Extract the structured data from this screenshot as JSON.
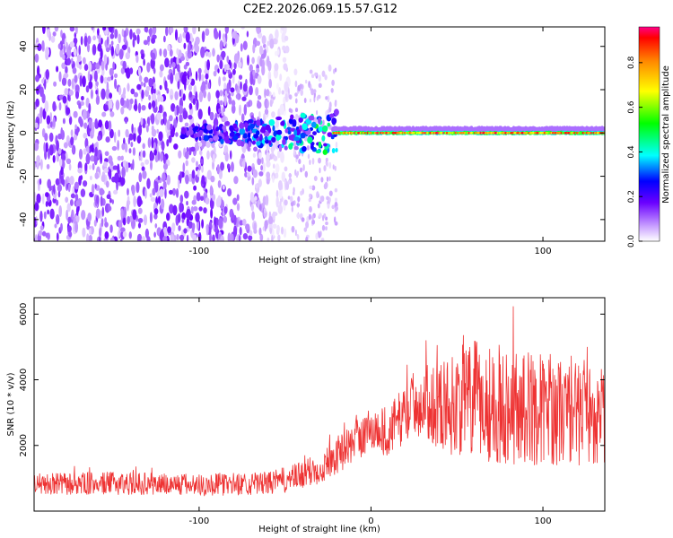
{
  "title": "C2E2.2026.069.15.57.G12",
  "chart_data": [
    {
      "type": "heatmap",
      "name": "spectrogram",
      "xlabel": "Height of straight line (km)",
      "ylabel": "Frequency (Hz)",
      "xlim": [
        -196,
        136
      ],
      "ylim": [
        -50,
        49
      ],
      "xticks": [
        -100,
        0,
        100
      ],
      "yticks": [
        -40,
        -20,
        0,
        20,
        40
      ],
      "colorbar": {
        "label": "Normalized spectral amplitude",
        "range": [
          0,
          0.96
        ],
        "ticks": [
          0.0,
          0.2,
          0.4,
          0.6,
          0.8
        ]
      },
      "features": [
        {
          "desc": "broadband noise",
          "x_range": [
            -196,
            -48
          ],
          "f_range": [
            -50,
            49
          ],
          "level": 0.1
        },
        {
          "desc": "faint scatter",
          "x_range": [
            -48,
            -20
          ],
          "f_range": [
            -50,
            30
          ],
          "level": 0.05
        },
        {
          "desc": "noisy ridge",
          "x_range": [
            -110,
            -20
          ],
          "f_center": 0,
          "level": 0.25
        },
        {
          "desc": "strong signal line",
          "x_range": [
            -22,
            136
          ],
          "f_center": 0,
          "level": 0.9
        }
      ]
    },
    {
      "type": "line",
      "name": "snr",
      "xlabel": "Height of straight line (km)",
      "ylabel": "SNR (10 * v/v)",
      "xlim": [
        -196,
        136
      ],
      "ylim": [
        0,
        6500
      ],
      "xticks": [
        -100,
        0,
        100
      ],
      "yticks": [
        2000,
        4000,
        6000
      ],
      "color": "#ee3333",
      "envelope": {
        "x": [
          -196,
          -150,
          -100,
          -60,
          -45,
          -30,
          -20,
          -10,
          0,
          10,
          20,
          25,
          35,
          45,
          55,
          65,
          80,
          100,
          115,
          136
        ],
        "y": [
          800,
          850,
          800,
          850,
          1000,
          1300,
          1700,
          2100,
          2500,
          2400,
          3000,
          3300,
          3300,
          3200,
          3400,
          3300,
          3200,
          3100,
          3000,
          2900
        ]
      },
      "spread": {
        "x": [
          -196,
          -60,
          -30,
          0,
          20,
          30,
          45,
          60,
          80,
          100,
          136
        ],
        "y": [
          350,
          350,
          500,
          700,
          900,
          1100,
          1500,
          1900,
          1800,
          1700,
          1500
        ]
      }
    }
  ]
}
